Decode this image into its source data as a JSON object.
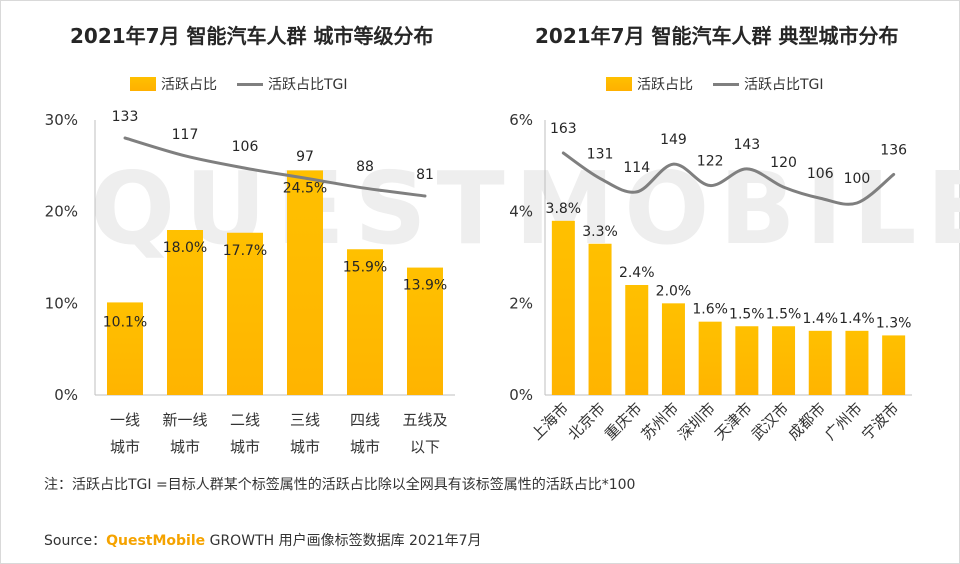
{
  "note": "注：活跃占比TGI =目标人群某个标签属性的活跃占比除以全网具有该标签属性的活跃占比*100",
  "source": {
    "prefix": "Source：",
    "brand": "QuestMobile",
    "rest": " GROWTH 用户画像标签数据库 2021年7月"
  },
  "watermark": "QUESTMOBILE",
  "colors": {
    "bar": "#FFC000",
    "line": "#7f7f7f",
    "axis": "#bfbfbf"
  },
  "chart_data": [
    {
      "type": "bar",
      "title": "2021年7月 智能汽车人群 城市等级分布",
      "legend": [
        "活跃占比",
        "活跃占比TGI"
      ],
      "categories": [
        [
          "一线",
          "城市"
        ],
        [
          "新一线",
          "城市"
        ],
        [
          "二线",
          "城市"
        ],
        [
          "三线",
          "城市"
        ],
        [
          "四线",
          "城市"
        ],
        [
          "五线及",
          "以下"
        ]
      ],
      "series": [
        {
          "name": "活跃占比",
          "values": [
            10.1,
            18.0,
            17.7,
            24.5,
            15.9,
            13.9
          ],
          "labels": [
            "10.1%",
            "18.0%",
            "17.7%",
            "24.5%",
            "15.9%",
            "13.9%"
          ]
        },
        {
          "name": "活跃占比TGI",
          "type": "line",
          "values": [
            133,
            117,
            106,
            97,
            88,
            81
          ]
        }
      ],
      "yticks": [
        "0%",
        "10%",
        "20%",
        "30%"
      ],
      "ylim": [
        0,
        30
      ]
    },
    {
      "type": "bar",
      "title": "2021年7月 智能汽车人群 典型城市分布",
      "legend": [
        "活跃占比",
        "活跃占比TGI"
      ],
      "categories": [
        "上海市",
        "北京市",
        "重庆市",
        "苏州市",
        "深圳市",
        "天津市",
        "武汉市",
        "成都市",
        "广州市",
        "宁波市"
      ],
      "series": [
        {
          "name": "活跃占比",
          "values": [
            3.8,
            3.3,
            2.4,
            2.0,
            1.6,
            1.5,
            1.5,
            1.4,
            1.4,
            1.3
          ],
          "labels": [
            "3.8%",
            "3.3%",
            "2.4%",
            "2.0%",
            "1.6%",
            "1.5%",
            "1.5%",
            "1.4%",
            "1.4%",
            "1.3%"
          ]
        },
        {
          "name": "活跃占比TGI",
          "type": "line",
          "values": [
            163,
            131,
            114,
            149,
            122,
            143,
            120,
            106,
            100,
            136
          ]
        }
      ],
      "yticks": [
        "0%",
        "2%",
        "4%",
        "6%"
      ],
      "ylim": [
        0,
        6
      ]
    }
  ]
}
